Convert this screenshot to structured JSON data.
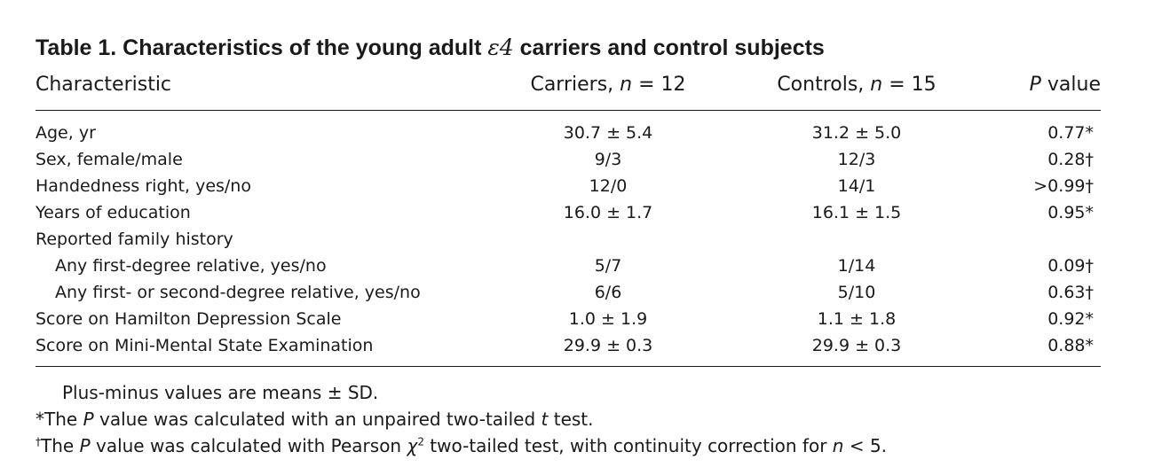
{
  "table": {
    "caption_prefix": "Table 1. Characteristics of the young adult ",
    "caption_epsilon": "ε4",
    "caption_suffix": " carriers and control subjects",
    "headers": {
      "characteristic": "Characteristic",
      "carriers_label": "Carriers, ",
      "carriers_n": "n",
      "carriers_eq": " = 12",
      "controls_label": "Controls, ",
      "controls_n": "n",
      "controls_eq": " = 15",
      "p_italic": "P",
      "p_rest": " value"
    },
    "rows": [
      {
        "characteristic": "Age, yr",
        "carriers": "30.7 ± 5.4",
        "controls": "31.2 ± 5.0",
        "p_value": "0.77*"
      },
      {
        "characteristic": "Sex, female/male",
        "carriers": "9/3",
        "controls": "12/3",
        "p_value": "0.28†"
      },
      {
        "characteristic": "Handedness right, yes/no",
        "carriers": "12/0",
        "controls": "14/1",
        "p_value": ">0.99†"
      },
      {
        "characteristic": "Years of education",
        "carriers": "16.0 ± 1.7",
        "controls": "16.1 ± 1.5",
        "p_value": "0.95*"
      },
      {
        "characteristic": "Reported family history",
        "carriers": "",
        "controls": "",
        "p_value": ""
      },
      {
        "characteristic": "Any first-degree relative, yes/no",
        "carriers": "5/7",
        "controls": "1/14",
        "p_value": "0.09†"
      },
      {
        "characteristic": "Any first- or second-degree relative, yes/no",
        "carriers": "6/6",
        "controls": "5/10",
        "p_value": "0.63†"
      },
      {
        "characteristic": "Score on Hamilton Depression Scale",
        "carriers": "1.0 ± 1.9",
        "controls": "1.1 ± 1.8",
        "p_value": "0.92*"
      },
      {
        "characteristic": "Score on Mini-Mental State Examination",
        "carriers": "29.9 ± 0.3",
        "controls": "29.9 ± 0.3",
        "p_value": "0.88*"
      }
    ],
    "notes": {
      "note1": "Plus-minus values are means ± SD.",
      "note2_a": "*The ",
      "note2_p": "P",
      "note2_b": " value was calculated with an unpaired two-tailed ",
      "note2_t": "t",
      "note2_c": " test.",
      "note3_dagger": "†",
      "note3_a": "The ",
      "note3_p": "P",
      "note3_b": " value was calculated with Pearson ",
      "note3_chi": "χ",
      "note3_sq": "2",
      "note3_c": " two-tailed test, with continuity correction for ",
      "note3_n": "n",
      "note3_d": " < 5."
    }
  }
}
